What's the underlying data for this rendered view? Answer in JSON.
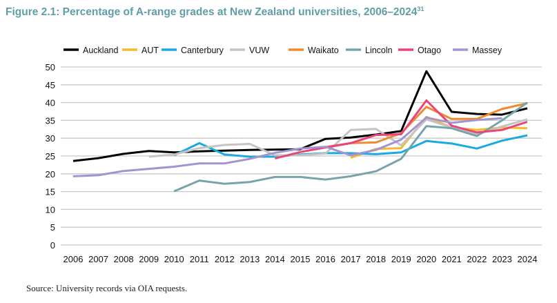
{
  "title": "Figure 2.1: Percentage of A-range grades at New Zealand universities, 2006–2024",
  "title_footnote": "31",
  "source": "Source: University records via OIA requests.",
  "chart_data": {
    "type": "line",
    "title": "Percentage of A-range grades at New Zealand universities, 2006–2024",
    "xlabel": "",
    "ylabel": "",
    "ylim": [
      0,
      50
    ],
    "yticks": [
      0,
      5,
      10,
      15,
      20,
      25,
      30,
      35,
      40,
      45,
      50
    ],
    "grid": true,
    "legend": "top",
    "x": [
      2006,
      2007,
      2008,
      2009,
      2010,
      2011,
      2012,
      2013,
      2014,
      2015,
      2016,
      2017,
      2018,
      2019,
      2020,
      2021,
      2022,
      2023,
      2024
    ],
    "series": [
      {
        "name": "Auckland",
        "color": "#000000",
        "values": [
          23.6,
          24.4,
          25.6,
          26.4,
          26,
          26.3,
          26.5,
          26.7,
          26.8,
          26.9,
          29.8,
          30.2,
          31,
          32,
          48.8,
          37.4,
          36.8,
          36.6,
          38.4
        ]
      },
      {
        "name": "AUT",
        "color": "#f7b92b",
        "values": [
          null,
          null,
          null,
          null,
          null,
          null,
          null,
          null,
          null,
          null,
          null,
          24.5,
          27,
          27.2,
          36,
          33,
          32.3,
          33,
          32.8
        ]
      },
      {
        "name": "Canterbury",
        "color": "#1aa9e1",
        "values": [
          null,
          null,
          null,
          null,
          25.2,
          28.6,
          25.4,
          24.8,
          24.8,
          25.4,
          25.8,
          25.8,
          25.5,
          26,
          29.2,
          28.5,
          27.1,
          29.3,
          30.8
        ]
      },
      {
        "name": "VUW",
        "color": "#c4c4c4",
        "values": [
          null,
          null,
          null,
          24.8,
          25.4,
          27.2,
          28.1,
          28.4,
          25.2,
          25.2,
          25.7,
          32.3,
          32.6,
          28,
          35.3,
          33,
          31,
          33.3,
          35.3
        ]
      },
      {
        "name": "Waikato",
        "color": "#f08a2c",
        "values": [
          null,
          null,
          null,
          null,
          null,
          null,
          null,
          null,
          null,
          null,
          27.5,
          28.6,
          28.8,
          31.4,
          38.8,
          35.4,
          35.4,
          38.2,
          39.8
        ]
      },
      {
        "name": "Lincoln",
        "color": "#75a5a8",
        "values": [
          null,
          null,
          null,
          null,
          15.1,
          18.1,
          17.2,
          17.7,
          19.1,
          19.1,
          18.4,
          19.3,
          20.7,
          24.2,
          33.4,
          32.8,
          30.6,
          35,
          40
        ]
      },
      {
        "name": "Otago",
        "color": "#e8457a",
        "values": [
          null,
          null,
          null,
          null,
          null,
          null,
          null,
          null,
          24.3,
          26.1,
          27.4,
          28.6,
          30.9,
          31.1,
          40.6,
          33.5,
          31.6,
          32.3,
          34.6
        ]
      },
      {
        "name": "Massey",
        "color": "#a393cf",
        "values": [
          19.3,
          19.6,
          20.8,
          21.4,
          22,
          22.9,
          22.9,
          24.2,
          25.9,
          27.1,
          27.6,
          25.2,
          26.7,
          29.6,
          35.8,
          34.3,
          35.1,
          35.6,
          null
        ]
      }
    ]
  }
}
